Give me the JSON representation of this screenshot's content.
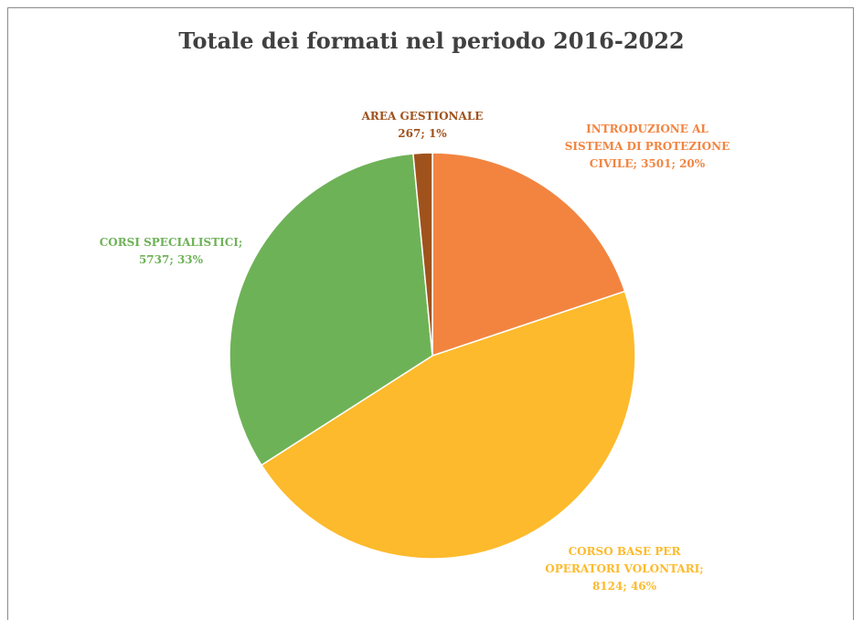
{
  "chart_data": {
    "type": "pie",
    "title": "Totale dei formati nel periodo 2016-2022",
    "slices": [
      {
        "name": "INTRODUZIONE AL SISTEMA DI PROTEZIONE CIVILE",
        "value": 3501,
        "percent": "20%",
        "color": "#F28440",
        "label_lines": [
          "INTRODUZIONE AL",
          "SISTEMA DI PROTEZIONE",
          "CIVILE; 3501; 20%"
        ]
      },
      {
        "name": "CORSO BASE PER OPERATORI VOLONTARI",
        "value": 8124,
        "percent": "46%",
        "color": "#FDBA2C",
        "label_lines": [
          "CORSO BASE PER",
          "OPERATORI VOLONTARI;",
          "8124; 46%"
        ]
      },
      {
        "name": "CORSI SPECIALISTICI",
        "value": 5737,
        "percent": "33%",
        "color": "#6EB257",
        "label_lines": [
          "CORSI SPECIALISTICI;",
          "5737; 33%"
        ]
      },
      {
        "name": "AREA GESTIONALE",
        "value": 267,
        "percent": "1%",
        "color": "#A0521C",
        "label_lines": [
          "AREA GESTIONALE",
          "267; 1%"
        ]
      }
    ],
    "label_colors": [
      "#F28440",
      "#FDBA2C",
      "#6EB257",
      "#A0521C"
    ]
  }
}
